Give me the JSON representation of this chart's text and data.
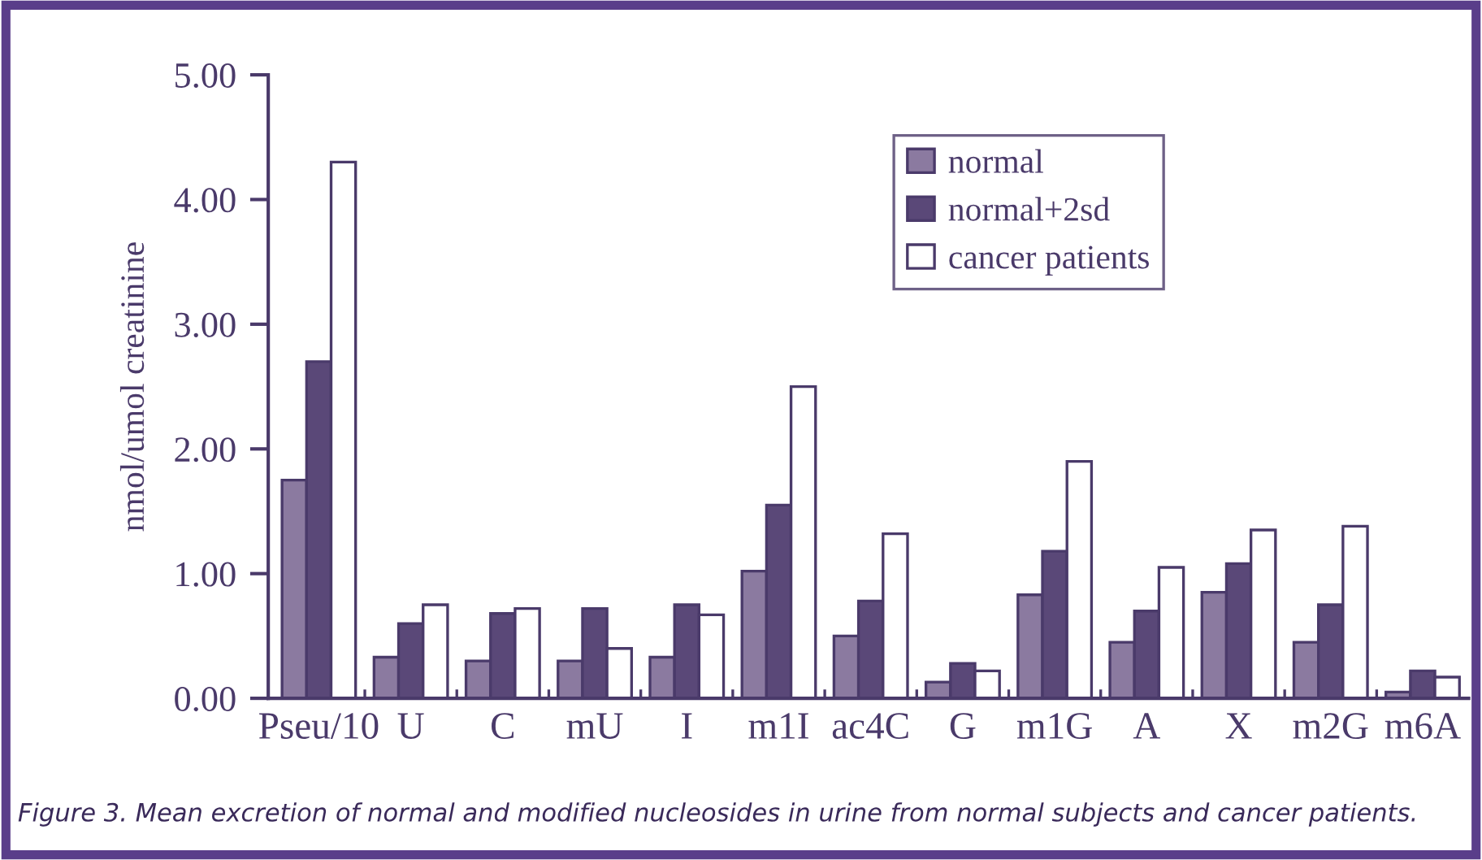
{
  "chart_data": {
    "type": "bar",
    "ylabel": "nmol/umol creatinine",
    "categories": [
      "Pseu/10",
      "U",
      "C",
      "mU",
      "I",
      "m1I",
      "ac4C",
      "G",
      "m1G",
      "A",
      "X",
      "m2G",
      "m6A"
    ],
    "series": [
      {
        "name": "normal",
        "color": "#8b7aa0",
        "values": [
          1.75,
          0.33,
          0.3,
          0.3,
          0.33,
          1.02,
          0.5,
          0.13,
          0.83,
          0.45,
          0.85,
          0.45,
          0.05
        ]
      },
      {
        "name": "normal+2sd",
        "color": "#5a4878",
        "values": [
          2.7,
          0.6,
          0.68,
          0.72,
          0.75,
          1.55,
          0.78,
          0.28,
          1.18,
          0.7,
          1.08,
          0.75,
          0.22
        ]
      },
      {
        "name": "cancer patients",
        "color": "#ffffff",
        "values": [
          4.3,
          0.75,
          0.72,
          0.4,
          0.67,
          2.5,
          1.32,
          0.22,
          1.9,
          1.05,
          1.35,
          1.38,
          0.17
        ]
      }
    ],
    "ylim": [
      0,
      5
    ],
    "yticks": [
      {
        "value": 0,
        "label": "0.00"
      },
      {
        "value": 1,
        "label": "1.00"
      },
      {
        "value": 2,
        "label": "2.00"
      },
      {
        "value": 3,
        "label": "3.00"
      },
      {
        "value": 4,
        "label": "4.00"
      },
      {
        "value": 5,
        "label": "5.00"
      }
    ],
    "grid": false,
    "legend": "top right",
    "annotations": [
      "Figure 3. Mean excretion of normal and modified nucleosides in urine from normal subjects and cancer patients."
    ]
  }
}
